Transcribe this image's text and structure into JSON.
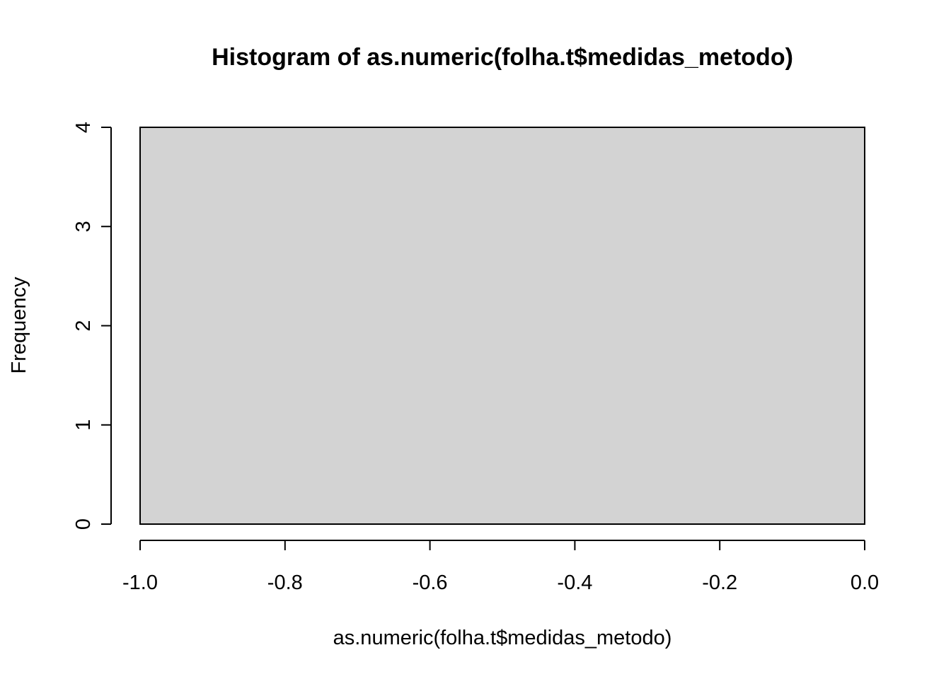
{
  "chart_data": {
    "type": "bar",
    "title": "Histogram of as.numeric(folha.t$medidas_metodo)",
    "xlabel": "as.numeric(folha.t$medidas_metodo)",
    "ylabel": "Frequency",
    "xlim": [
      -1.0,
      0.0
    ],
    "ylim": [
      0,
      4
    ],
    "bins": [
      {
        "from": -1.0,
        "to": 0.0,
        "count": 4
      }
    ],
    "x_ticks": [
      "-1.0",
      "-0.8",
      "-0.6",
      "-0.4",
      "-0.2",
      "0.0"
    ],
    "x_tick_values": [
      -1.0,
      -0.8,
      -0.6,
      -0.4,
      -0.2,
      0.0
    ],
    "y_ticks": [
      "0",
      "1",
      "2",
      "3",
      "4"
    ],
    "y_tick_values": [
      0,
      1,
      2,
      3,
      4
    ],
    "bar_color": "#d3d3d3",
    "grid": false,
    "legend": "none"
  }
}
